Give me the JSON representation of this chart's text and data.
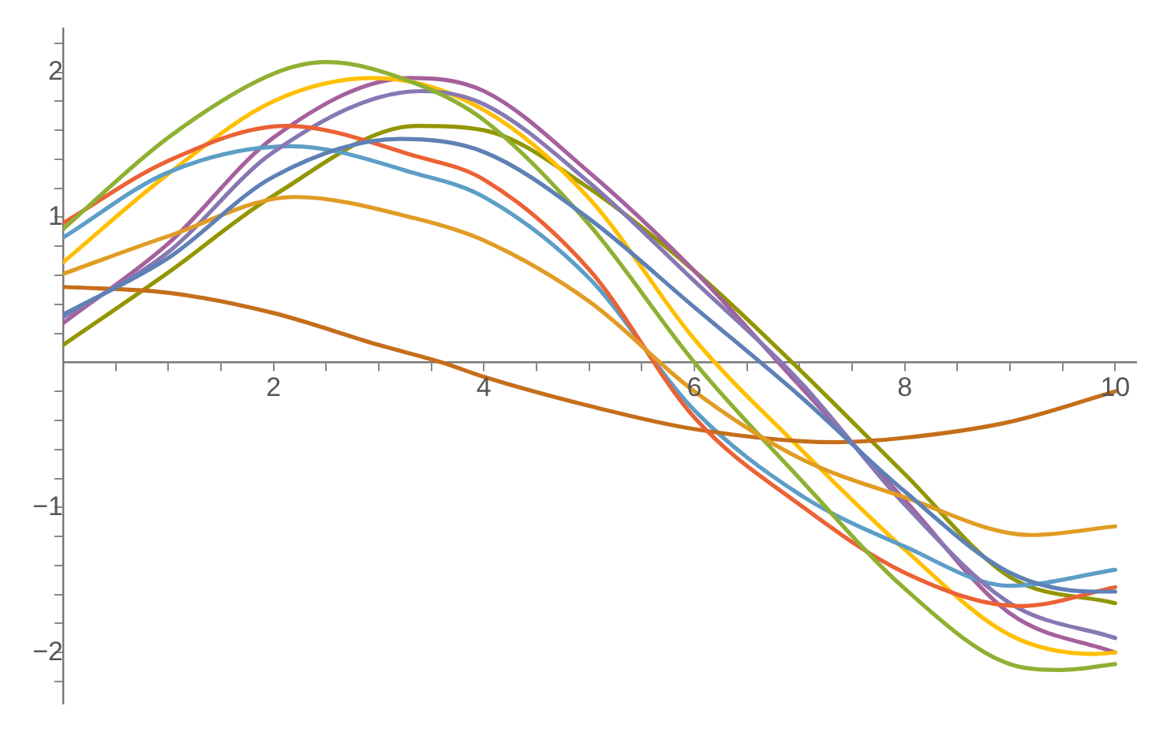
{
  "chart_data": {
    "type": "line",
    "marker": "none",
    "xlim": [
      0,
      10.2
    ],
    "ylim": [
      -2.35,
      2.3
    ],
    "xticks": [
      {
        "value": 0.5,
        "label": null
      },
      {
        "value": 1,
        "label": null
      },
      {
        "value": 1.5,
        "label": null
      },
      2,
      {
        "value": 2.5,
        "label": null
      },
      {
        "value": 3,
        "label": null
      },
      {
        "value": 3.5,
        "label": null
      },
      4,
      {
        "value": 4.5,
        "label": null
      },
      {
        "value": 5,
        "label": null
      },
      {
        "value": 5.5,
        "label": null
      },
      6,
      {
        "value": 6.5,
        "label": null
      },
      {
        "value": 7,
        "label": null
      },
      {
        "value": 7.5,
        "label": null
      },
      8,
      {
        "value": 8.5,
        "label": null
      },
      {
        "value": 9,
        "label": null
      },
      {
        "value": 9.5,
        "label": null
      },
      10
    ],
    "yticks": [
      {
        "value": -2.2,
        "label": null
      },
      {
        "value": -2,
        "label": "−2"
      },
      {
        "value": -1.8,
        "label": null
      },
      {
        "value": -1.6,
        "label": null
      },
      {
        "value": -1.4,
        "label": null
      },
      {
        "value": -1.2,
        "label": null
      },
      {
        "value": -1,
        "label": "−1"
      },
      {
        "value": -0.8,
        "label": null
      },
      {
        "value": -0.6,
        "label": null
      },
      {
        "value": -0.4,
        "label": null
      },
      {
        "value": -0.2,
        "label": null
      },
      {
        "value": 0.2,
        "label": null
      },
      {
        "value": 0.4,
        "label": null
      },
      {
        "value": 0.6,
        "label": null
      },
      {
        "value": 0.8,
        "label": null
      },
      1,
      {
        "value": 1.2,
        "label": null
      },
      {
        "value": 1.4,
        "label": null
      },
      {
        "value": 1.6,
        "label": null
      },
      {
        "value": 1.8,
        "label": null
      },
      2,
      {
        "value": 2.2,
        "label": null
      }
    ],
    "series": [
      {
        "color": "#5e81b5",
        "x": [
          0,
          1,
          2,
          3.2,
          4,
          5,
          6,
          7,
          8,
          9,
          9.8,
          10
        ],
        "values": [
          0.33,
          0.72,
          1.28,
          1.54,
          1.45,
          0.99,
          0.38,
          -0.23,
          -0.89,
          -1.45,
          -1.58,
          -1.58
        ]
      },
      {
        "color": "#e19c24",
        "x": [
          0,
          1,
          2.2,
          3.36,
          4,
          5,
          6,
          7,
          8,
          9.2,
          10
        ],
        "values": [
          0.61,
          0.87,
          1.14,
          0.99,
          0.84,
          0.42,
          -0.2,
          -0.66,
          -0.93,
          -1.19,
          -1.13
        ]
      },
      {
        "color": "#8fb032",
        "x": [
          0,
          1,
          2,
          2.5,
          3.36,
          4,
          5,
          6,
          7,
          8,
          9,
          9.5,
          10
        ],
        "values": [
          0.92,
          1.55,
          1.99,
          2.07,
          1.92,
          1.67,
          0.95,
          0,
          -0.8,
          -1.56,
          -2.08,
          -2.12,
          -2.08
        ]
      },
      {
        "color": "#eb6235",
        "x": [
          0,
          1,
          2.12,
          3.36,
          4,
          5,
          6,
          7,
          8,
          9.1,
          10
        ],
        "values": [
          0.96,
          1.39,
          1.63,
          1.42,
          1.26,
          0.64,
          -0.38,
          -0.98,
          -1.45,
          -1.68,
          -1.55
        ]
      },
      {
        "color": "#8778b3",
        "x": [
          0,
          1,
          2,
          3.4,
          4,
          5,
          6,
          7,
          8,
          9,
          10
        ],
        "values": [
          0.31,
          0.76,
          1.45,
          1.87,
          1.78,
          1.24,
          0.56,
          -0.13,
          -0.98,
          -1.66,
          -1.9
        ]
      },
      {
        "color": "#c56e1a",
        "x": [
          0,
          1,
          2,
          3,
          3.6,
          4,
          5,
          6,
          7.33,
          8,
          9,
          10
        ],
        "values": [
          0.52,
          0.48,
          0.34,
          0.12,
          0,
          -0.1,
          -0.3,
          -0.46,
          -0.55,
          -0.52,
          -0.41,
          -0.2
        ]
      },
      {
        "color": "#5d9ec7",
        "x": [
          0,
          1,
          2.17,
          3.36,
          4,
          5,
          6,
          7,
          8,
          9,
          10
        ],
        "values": [
          0.86,
          1.31,
          1.49,
          1.3,
          1.14,
          0.58,
          -0.33,
          -0.91,
          -1.27,
          -1.54,
          -1.43
        ]
      },
      {
        "color": "#ffbf00",
        "x": [
          0,
          1,
          2,
          2.95,
          4,
          5,
          6,
          7,
          8,
          9,
          9.8,
          10
        ],
        "values": [
          0.69,
          1.3,
          1.8,
          1.96,
          1.74,
          1.13,
          0.16,
          -0.59,
          -1.29,
          -1.88,
          -2.01,
          -2.0
        ]
      },
      {
        "color": "#a5609d",
        "x": [
          0,
          1,
          2,
          3.3,
          4,
          5,
          6,
          7,
          8,
          9,
          10
        ],
        "values": [
          0.27,
          0.82,
          1.55,
          1.96,
          1.87,
          1.31,
          0.63,
          -0.16,
          -0.95,
          -1.73,
          -2.0
        ]
      },
      {
        "color": "#929600",
        "x": [
          0,
          1,
          2,
          3.36,
          4,
          5,
          6,
          6.93,
          8,
          9,
          10
        ],
        "values": [
          0.12,
          0.62,
          1.15,
          1.63,
          1.6,
          1.2,
          0.63,
          0,
          -0.77,
          -1.48,
          -1.66
        ]
      }
    ]
  }
}
